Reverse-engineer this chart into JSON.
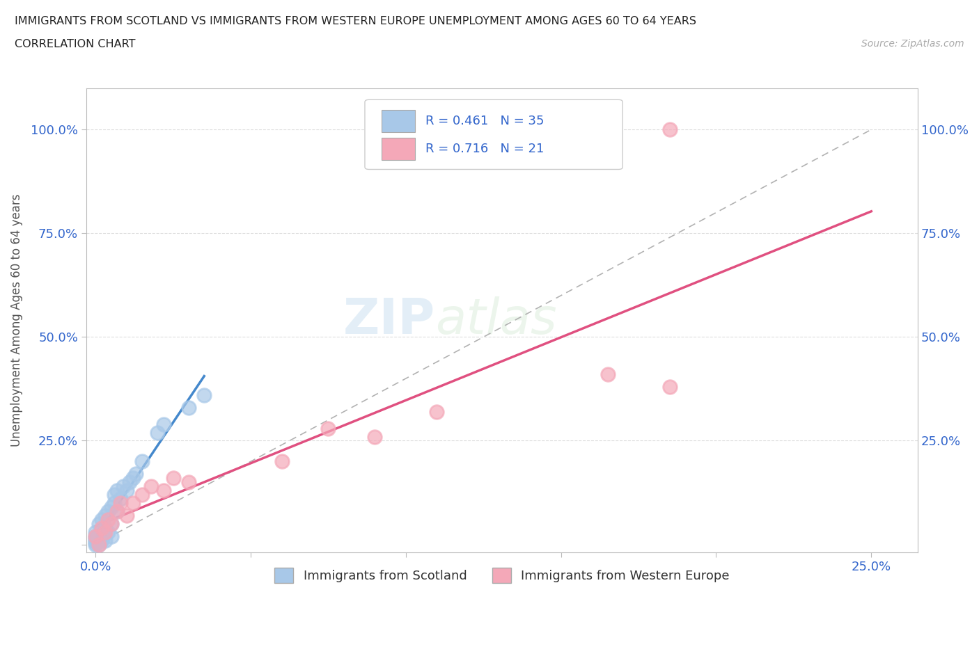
{
  "title_line1": "IMMIGRANTS FROM SCOTLAND VS IMMIGRANTS FROM WESTERN EUROPE UNEMPLOYMENT AMONG AGES 60 TO 64 YEARS",
  "title_line2": "CORRELATION CHART",
  "source": "Source: ZipAtlas.com",
  "ylabel": "Unemployment Among Ages 60 to 64 years",
  "xlim": [
    -0.003,
    0.265
  ],
  "ylim": [
    -0.02,
    1.1
  ],
  "scotland_color": "#a8c8e8",
  "western_europe_color": "#f4a8b8",
  "scotland_R": 0.461,
  "scotland_N": 35,
  "western_europe_R": 0.716,
  "western_europe_N": 21,
  "watermark_zip": "ZIP",
  "watermark_atlas": "atlas",
  "scotland_line_color": "#4488cc",
  "western_europe_line_color": "#e05080",
  "ref_line_color": "#aaaaaa",
  "scotland_x": [
    0.0,
    0.0,
    0.0,
    0.0,
    0.0,
    0.0,
    0.001,
    0.001,
    0.001,
    0.002,
    0.002,
    0.002,
    0.003,
    0.003,
    0.003,
    0.004,
    0.004,
    0.005,
    0.005,
    0.005,
    0.006,
    0.006,
    0.007,
    0.007,
    0.008,
    0.009,
    0.01,
    0.011,
    0.012,
    0.013,
    0.015,
    0.02,
    0.022,
    0.03,
    0.035
  ],
  "scotland_y": [
    0.0,
    0.005,
    0.01,
    0.015,
    0.02,
    0.03,
    0.0,
    0.01,
    0.05,
    0.01,
    0.02,
    0.06,
    0.01,
    0.04,
    0.07,
    0.03,
    0.08,
    0.02,
    0.05,
    0.09,
    0.1,
    0.12,
    0.08,
    0.13,
    0.11,
    0.14,
    0.13,
    0.15,
    0.16,
    0.17,
    0.2,
    0.27,
    0.29,
    0.33,
    0.36
  ],
  "western_europe_x": [
    0.0,
    0.001,
    0.002,
    0.003,
    0.004,
    0.005,
    0.007,
    0.008,
    0.01,
    0.012,
    0.015,
    0.018,
    0.022,
    0.025,
    0.03,
    0.06,
    0.075,
    0.09,
    0.11,
    0.165,
    0.185
  ],
  "western_europe_y": [
    0.02,
    0.0,
    0.04,
    0.03,
    0.06,
    0.05,
    0.08,
    0.1,
    0.07,
    0.1,
    0.12,
    0.14,
    0.13,
    0.16,
    0.15,
    0.2,
    0.28,
    0.26,
    0.32,
    0.41,
    0.38
  ]
}
